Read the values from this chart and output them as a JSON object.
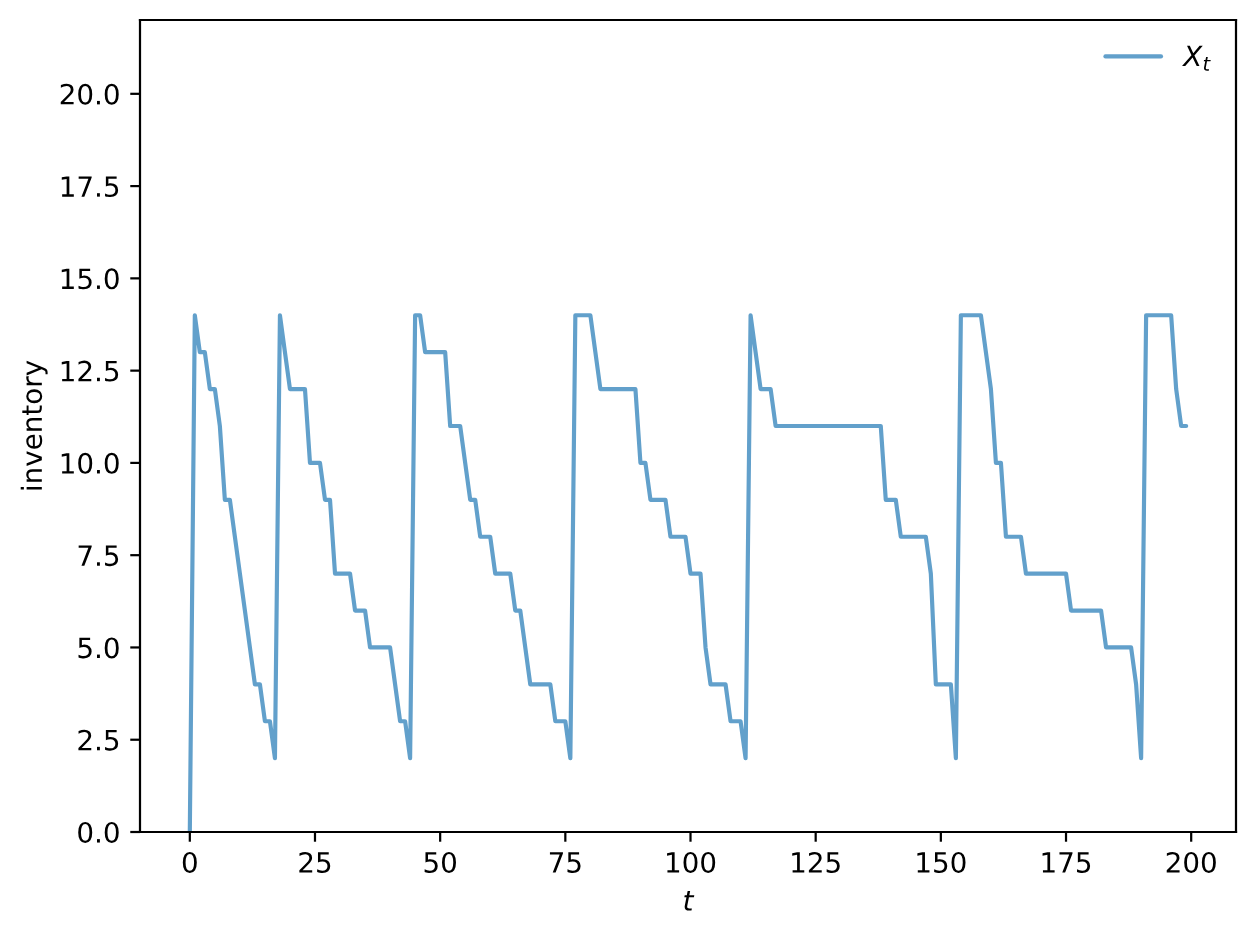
{
  "chart_data": {
    "type": "line",
    "xlabel": "t",
    "ylabel": "inventory",
    "x": [
      0,
      1,
      2,
      3,
      4,
      5,
      6,
      7,
      8,
      9,
      10,
      11,
      12,
      13,
      14,
      15,
      16,
      17,
      18,
      19,
      20,
      21,
      22,
      23,
      24,
      25,
      26,
      27,
      28,
      29,
      30,
      31,
      32,
      33,
      34,
      35,
      36,
      37,
      38,
      39,
      40,
      41,
      42,
      43,
      44,
      45,
      46,
      47,
      48,
      49,
      50,
      51,
      52,
      53,
      54,
      55,
      56,
      57,
      58,
      59,
      60,
      61,
      62,
      63,
      64,
      65,
      66,
      67,
      68,
      69,
      70,
      71,
      72,
      73,
      74,
      75,
      76,
      77,
      78,
      79,
      80,
      81,
      82,
      83,
      84,
      85,
      86,
      87,
      88,
      89,
      90,
      91,
      92,
      93,
      94,
      95,
      96,
      97,
      98,
      99,
      100,
      101,
      102,
      103,
      104,
      105,
      106,
      107,
      108,
      109,
      110,
      111,
      112,
      113,
      114,
      115,
      116,
      117,
      118,
      119,
      120,
      121,
      122,
      123,
      124,
      125,
      126,
      127,
      128,
      129,
      130,
      131,
      132,
      133,
      134,
      135,
      136,
      137,
      138,
      139,
      140,
      141,
      142,
      143,
      144,
      145,
      146,
      147,
      148,
      149,
      150,
      151,
      152,
      153,
      154,
      155,
      156,
      157,
      158,
      159,
      160,
      161,
      162,
      163,
      164,
      165,
      166,
      167,
      168,
      169,
      170,
      171,
      172,
      173,
      174,
      175,
      176,
      177,
      178,
      179,
      180,
      181,
      182,
      183,
      184,
      185,
      186,
      187,
      188,
      189,
      190,
      191,
      192,
      193,
      194,
      195,
      196,
      197,
      198,
      199
    ],
    "series": [
      {
        "name": "X$_{t}$",
        "color": "#62a0cb",
        "values": [
          0,
          14,
          13,
          13,
          12,
          12,
          11,
          9,
          9,
          8,
          7,
          6,
          5,
          4,
          4,
          3,
          3,
          2,
          14,
          13,
          12,
          12,
          12,
          12,
          10,
          10,
          10,
          9,
          9,
          7,
          7,
          7,
          7,
          6,
          6,
          6,
          5,
          5,
          5,
          5,
          5,
          4,
          3,
          3,
          2,
          14,
          14,
          13,
          13,
          13,
          13,
          13,
          11,
          11,
          11,
          10,
          9,
          9,
          8,
          8,
          8,
          7,
          7,
          7,
          7,
          6,
          6,
          5,
          4,
          4,
          4,
          4,
          4,
          3,
          3,
          3,
          2,
          14,
          14,
          14,
          14,
          13,
          12,
          12,
          12,
          12,
          12,
          12,
          12,
          12,
          10,
          10,
          9,
          9,
          9,
          9,
          8,
          8,
          8,
          8,
          7,
          7,
          7,
          5,
          4,
          4,
          4,
          4,
          3,
          3,
          3,
          2,
          14,
          13,
          12,
          12,
          12,
          11,
          11,
          11,
          11,
          11,
          11,
          11,
          11,
          11,
          11,
          11,
          11,
          11,
          11,
          11,
          11,
          11,
          11,
          11,
          11,
          11,
          11,
          9,
          9,
          9,
          8,
          8,
          8,
          8,
          8,
          8,
          7,
          4,
          4,
          4,
          4,
          2,
          14,
          14,
          14,
          14,
          14,
          13,
          12,
          10,
          10,
          8,
          8,
          8,
          8,
          7,
          7,
          7,
          7,
          7,
          7,
          7,
          7,
          7,
          6,
          6,
          6,
          6,
          6,
          6,
          6,
          5,
          5,
          5,
          5,
          5,
          5,
          4,
          2,
          14,
          14,
          14,
          14,
          14,
          14,
          12,
          11,
          11
        ]
      }
    ],
    "xlim": [
      -9.95,
      208.95
    ],
    "ylim": [
      0,
      22
    ],
    "xticks": [
      0,
      25,
      50,
      75,
      100,
      125,
      150,
      175,
      200
    ],
    "yticks": [
      {
        "value": 0,
        "label": "0.0"
      },
      2.5,
      {
        "value": 5,
        "label": "5.0"
      },
      7.5,
      {
        "value": 10,
        "label": "10.0"
      },
      12.5,
      {
        "value": 15,
        "label": "15.0"
      },
      17.5,
      {
        "value": 20,
        "label": "20.0"
      }
    ],
    "grid": false,
    "legend": "top right"
  }
}
